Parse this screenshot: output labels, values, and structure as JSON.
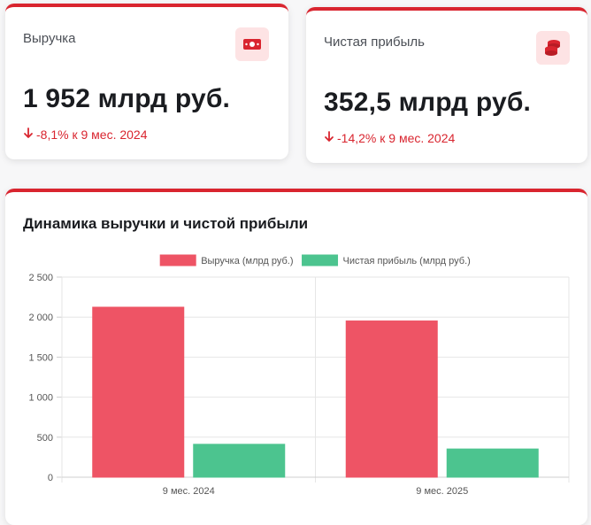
{
  "revenue_card": {
    "label": "Выручка",
    "value": "1 952 млрд руб.",
    "change": "-8,1% к 9 мес. 2024",
    "icon": "banknote-icon"
  },
  "profit_card": {
    "label": "Чистая прибыль",
    "value": "352,5 млрд руб.",
    "change": "-14,2% к 9 мес. 2024",
    "icon": "coins-stack-icon"
  },
  "colors": {
    "accent": "#d9252f",
    "revenue_bar": "#ee5465",
    "profit_bar": "#4cc48f"
  },
  "chart_data": {
    "type": "bar",
    "title": "Динамика выручки и чистой прибыли",
    "categories": [
      "9 мес. 2024",
      "9 мес. 2025"
    ],
    "series": [
      {
        "name": "Выручка (млрд руб.)",
        "values": [
          2124,
          1952
        ],
        "color": "#ee5465"
      },
      {
        "name": "Чистая прибыль (млрд руб.)",
        "values": [
          411,
          352.5
        ],
        "color": "#4cc48f"
      }
    ],
    "ylim": [
      0,
      2500
    ],
    "yticks": [
      0,
      500,
      1000,
      1500,
      2000,
      2500
    ],
    "ytick_labels": [
      "0",
      "500",
      "1 000",
      "1 500",
      "2 000",
      "2 500"
    ],
    "grid": true,
    "legend_position": "top-center"
  }
}
